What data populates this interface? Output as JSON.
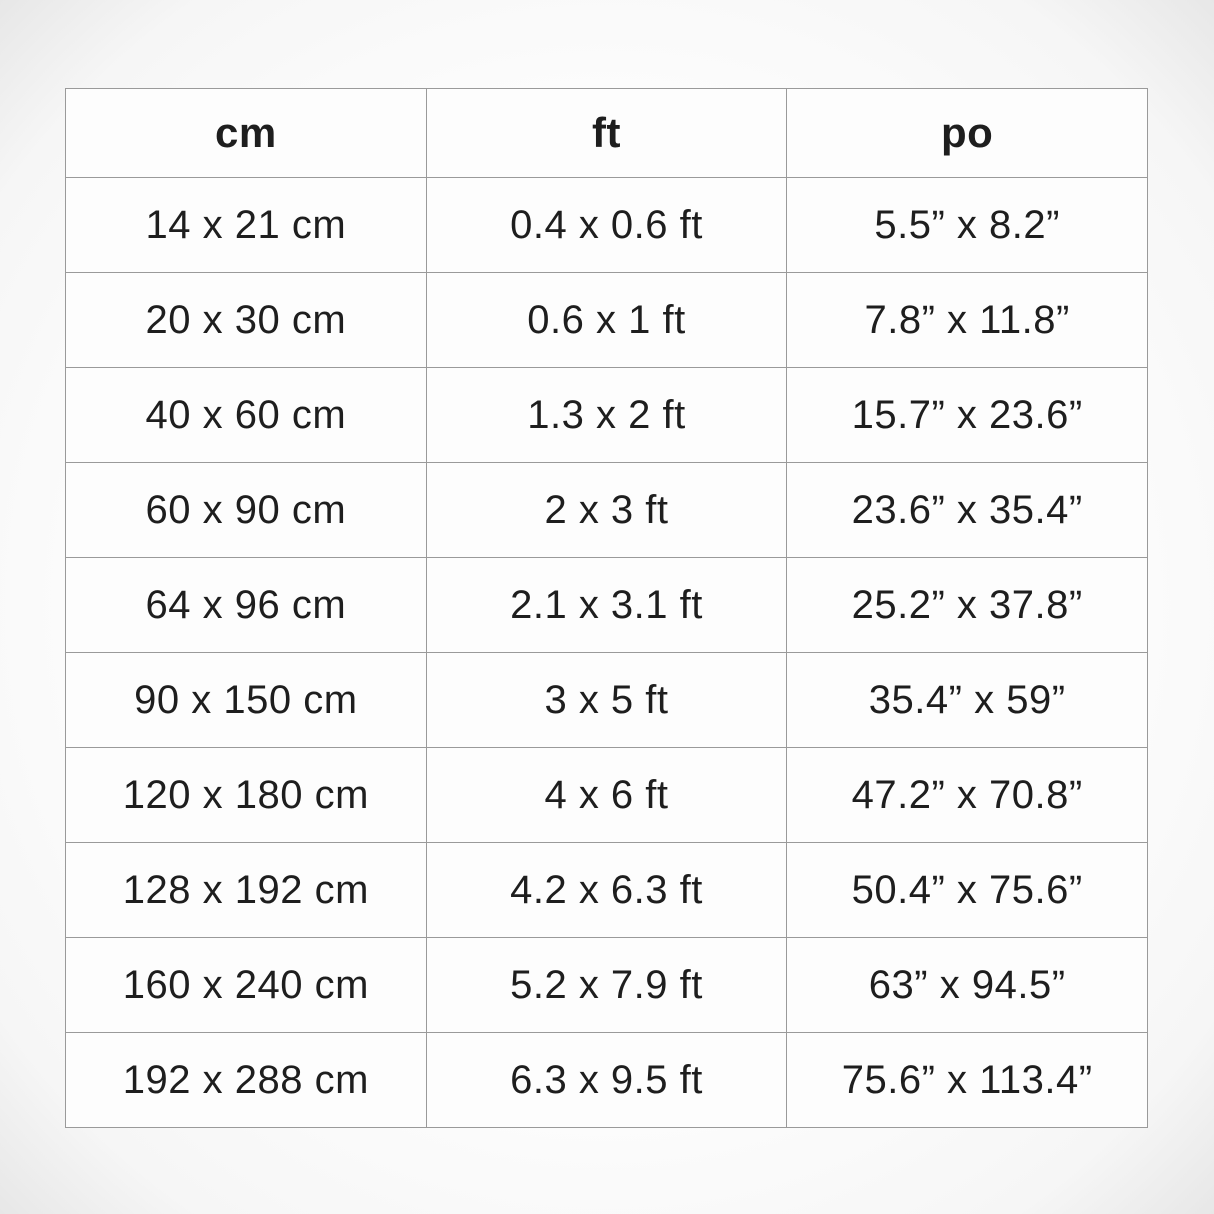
{
  "chart_data": {
    "type": "table",
    "title": "",
    "columns": [
      "cm",
      "ft",
      "po"
    ],
    "rows": [
      [
        "14 x 21 cm",
        "0.4 x 0.6 ft",
        "5.5” x 8.2”"
      ],
      [
        "20 x 30 cm",
        "0.6 x 1 ft",
        "7.8” x 11.8”"
      ],
      [
        "40 x 60 cm",
        "1.3 x 2 ft",
        "15.7” x 23.6”"
      ],
      [
        "60 x 90 cm",
        "2 x 3 ft",
        "23.6” x 35.4”"
      ],
      [
        "64 x 96 cm",
        "2.1 x 3.1 ft",
        "25.2” x 37.8”"
      ],
      [
        "90 x 150 cm",
        "3 x 5 ft",
        "35.4” x 59”"
      ],
      [
        "120 x 180 cm",
        "4 x 6 ft",
        "47.2” x 70.8”"
      ],
      [
        "128 x 192 cm",
        "4.2 x 6.3 ft",
        "50.4” x 75.6”"
      ],
      [
        "160 x 240 cm",
        "5.2 x 7.9 ft",
        "63” x 94.5”"
      ],
      [
        "192 x 288 cm",
        "6.3 x 9.5 ft",
        "75.6” x 113.4”"
      ]
    ],
    "colors": {
      "text": "#1e1e1e",
      "border": "#9a9a9a",
      "cell_background": "#fdfdfd"
    },
    "layout": {
      "grid": true,
      "column_alignment": "center"
    }
  }
}
